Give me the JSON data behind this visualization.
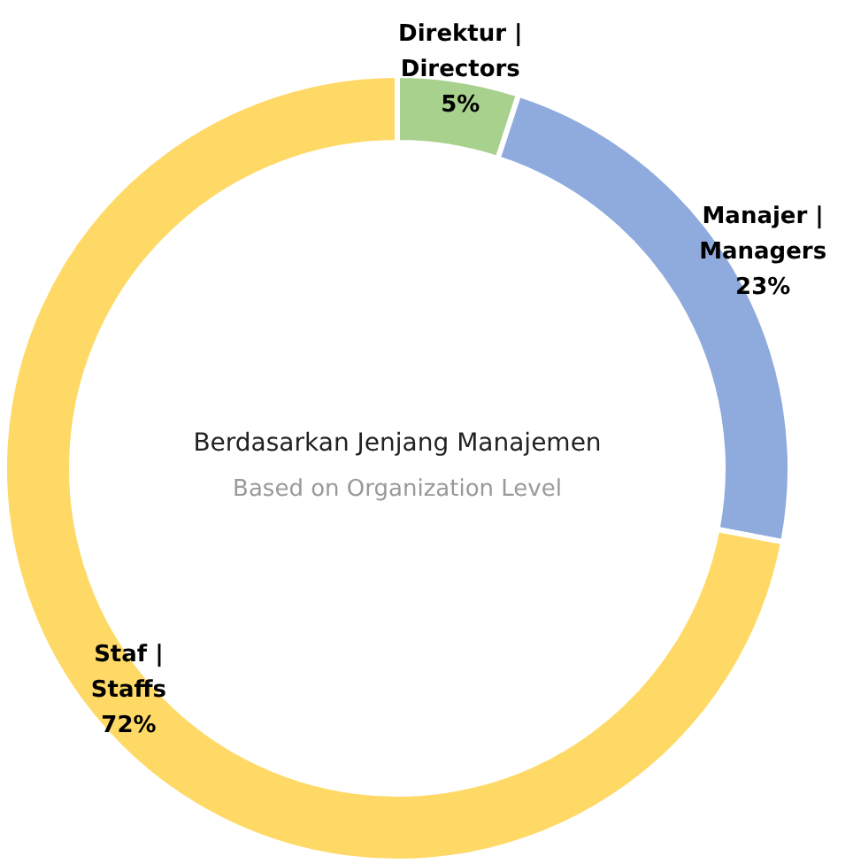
{
  "chart_data": {
    "type": "donut",
    "title": "Berdasarkan Jenjang Manajemen",
    "subtitle": "Based on Organization Level",
    "categories": [
      "Direktur | Directors",
      "Manajer | Managers",
      "Staf | Staffs"
    ],
    "values": [
      5,
      23,
      72
    ],
    "colors": [
      "#a9d18e",
      "#8faadc",
      "#ffd966"
    ],
    "value_labels": [
      "5%",
      "23%",
      "72%"
    ],
    "legend": false
  }
}
